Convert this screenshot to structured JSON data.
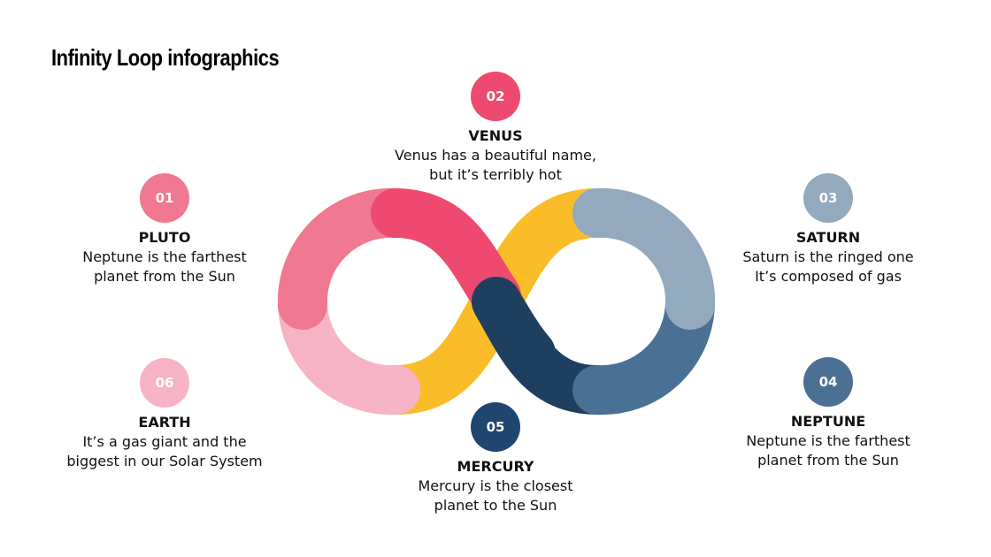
{
  "title": "Infinity Loop infographics",
  "colors": {
    "pluto": "#f07891",
    "venus": "#ee4a70",
    "saturn": "#93a9bd",
    "neptune": "#4a7093",
    "mercury": "#1f4670",
    "mercury_loop": "#1e3f5e",
    "earth": "#f7b3c6",
    "yellow": "#fbbc2a"
  },
  "items": [
    {
      "number": "01",
      "name": "PLUTO",
      "line1": "Neptune is the farthest",
      "line2": "planet from the Sun"
    },
    {
      "number": "02",
      "name": "VENUS",
      "line1": "Venus has a beautiful name,",
      "line2": "but it’s terribly hot"
    },
    {
      "number": "03",
      "name": "SATURN",
      "line1": "Saturn is the ringed one",
      "line2": "It’s composed of gas"
    },
    {
      "number": "04",
      "name": "NEPTUNE",
      "line1": "Neptune is the farthest",
      "line2": "planet from the Sun"
    },
    {
      "number": "05",
      "name": "MERCURY",
      "line1": "Mercury is the closest",
      "line2": "planet to the Sun"
    },
    {
      "number": "06",
      "name": "EARTH",
      "line1": "It’s a gas giant and the",
      "line2": "biggest in our Solar System"
    }
  ]
}
